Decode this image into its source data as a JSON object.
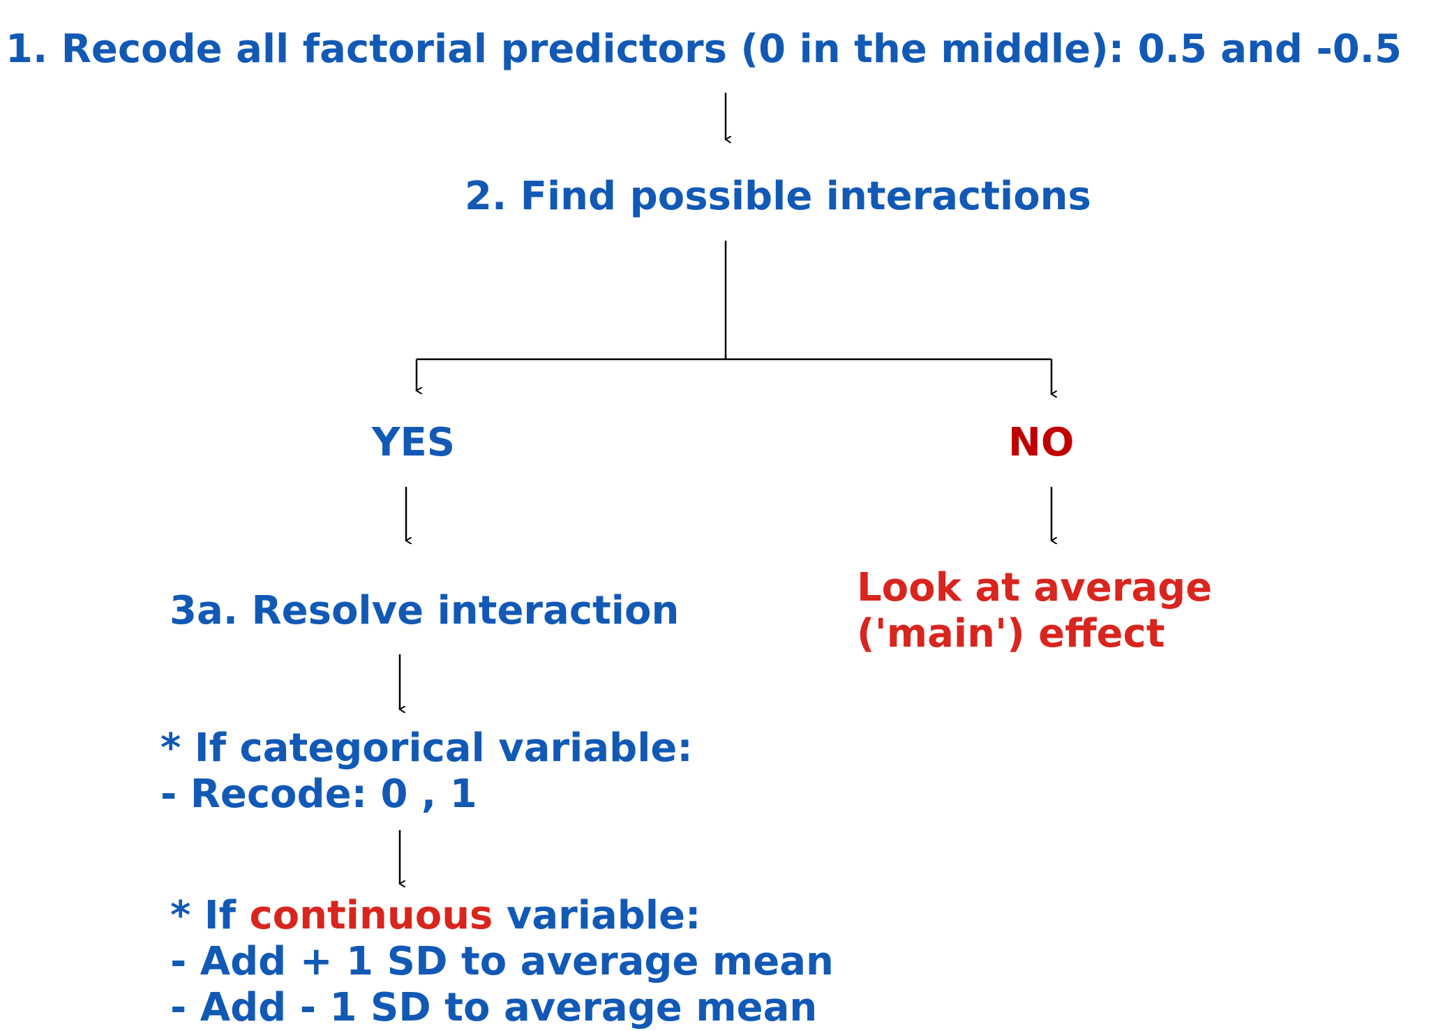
{
  "step1": {
    "label": "1. Recode all factorial predictors (0 in the middle): 0.5 and -0.5"
  },
  "step2": {
    "label": "2. Find possible interactions"
  },
  "yes": {
    "label": "YES"
  },
  "no": {
    "label": "NO"
  },
  "step3a": {
    "label": "3a. Resolve interaction"
  },
  "main_effect": {
    "line1": "Look at average",
    "line2": "('main') effect"
  },
  "categorical": {
    "line1": "* If categorical variable:",
    "line2": "- Recode: 0 , 1"
  },
  "continuous": {
    "line1_prefix": "* If ",
    "line1_highlight": "continuous",
    "line1_suffix": " variable:",
    "line2": "- Add + 1 SD to average mean",
    "line3": "- Add - 1 SD to average mean"
  },
  "colors": {
    "blue_text": "#1259b5",
    "red_text": "#d8251e",
    "no_text": "#c00000",
    "connector": "#000000"
  }
}
